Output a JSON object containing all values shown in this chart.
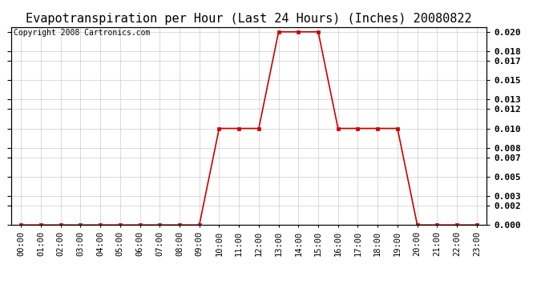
{
  "title": "Evapotranspiration per Hour (Last 24 Hours) (Inches) 20080822",
  "copyright_text": "Copyright 2008 Cartronics.com",
  "hours": [
    0,
    1,
    2,
    3,
    4,
    5,
    6,
    7,
    8,
    9,
    10,
    11,
    12,
    13,
    14,
    15,
    16,
    17,
    18,
    19,
    20,
    21,
    22,
    23
  ],
  "hour_labels": [
    "00:00",
    "01:00",
    "02:00",
    "03:00",
    "04:00",
    "05:00",
    "06:00",
    "07:00",
    "08:00",
    "09:00",
    "10:00",
    "11:00",
    "12:00",
    "13:00",
    "14:00",
    "15:00",
    "16:00",
    "17:00",
    "18:00",
    "19:00",
    "20:00",
    "21:00",
    "22:00",
    "23:00"
  ],
  "values": [
    0.0,
    0.0,
    0.0,
    0.0,
    0.0,
    0.0,
    0.0,
    0.0,
    0.0,
    0.0,
    0.01,
    0.01,
    0.01,
    0.02,
    0.02,
    0.02,
    0.01,
    0.01,
    0.01,
    0.01,
    0.0,
    0.0,
    0.0,
    0.0
  ],
  "line_color": "#cc0000",
  "marker": "s",
  "marker_size": 2.5,
  "marker_color": "#cc0000",
  "ylim": [
    0.0,
    0.0205
  ],
  "yticks": [
    0.0,
    0.002,
    0.003,
    0.005,
    0.007,
    0.008,
    0.01,
    0.012,
    0.013,
    0.015,
    0.017,
    0.018,
    0.02
  ],
  "bg_color": "#ffffff",
  "grid_color": "#cccccc",
  "title_fontsize": 11,
  "copyright_fontsize": 7,
  "tick_fontsize": 7.5,
  "ytick_fontsize": 8
}
